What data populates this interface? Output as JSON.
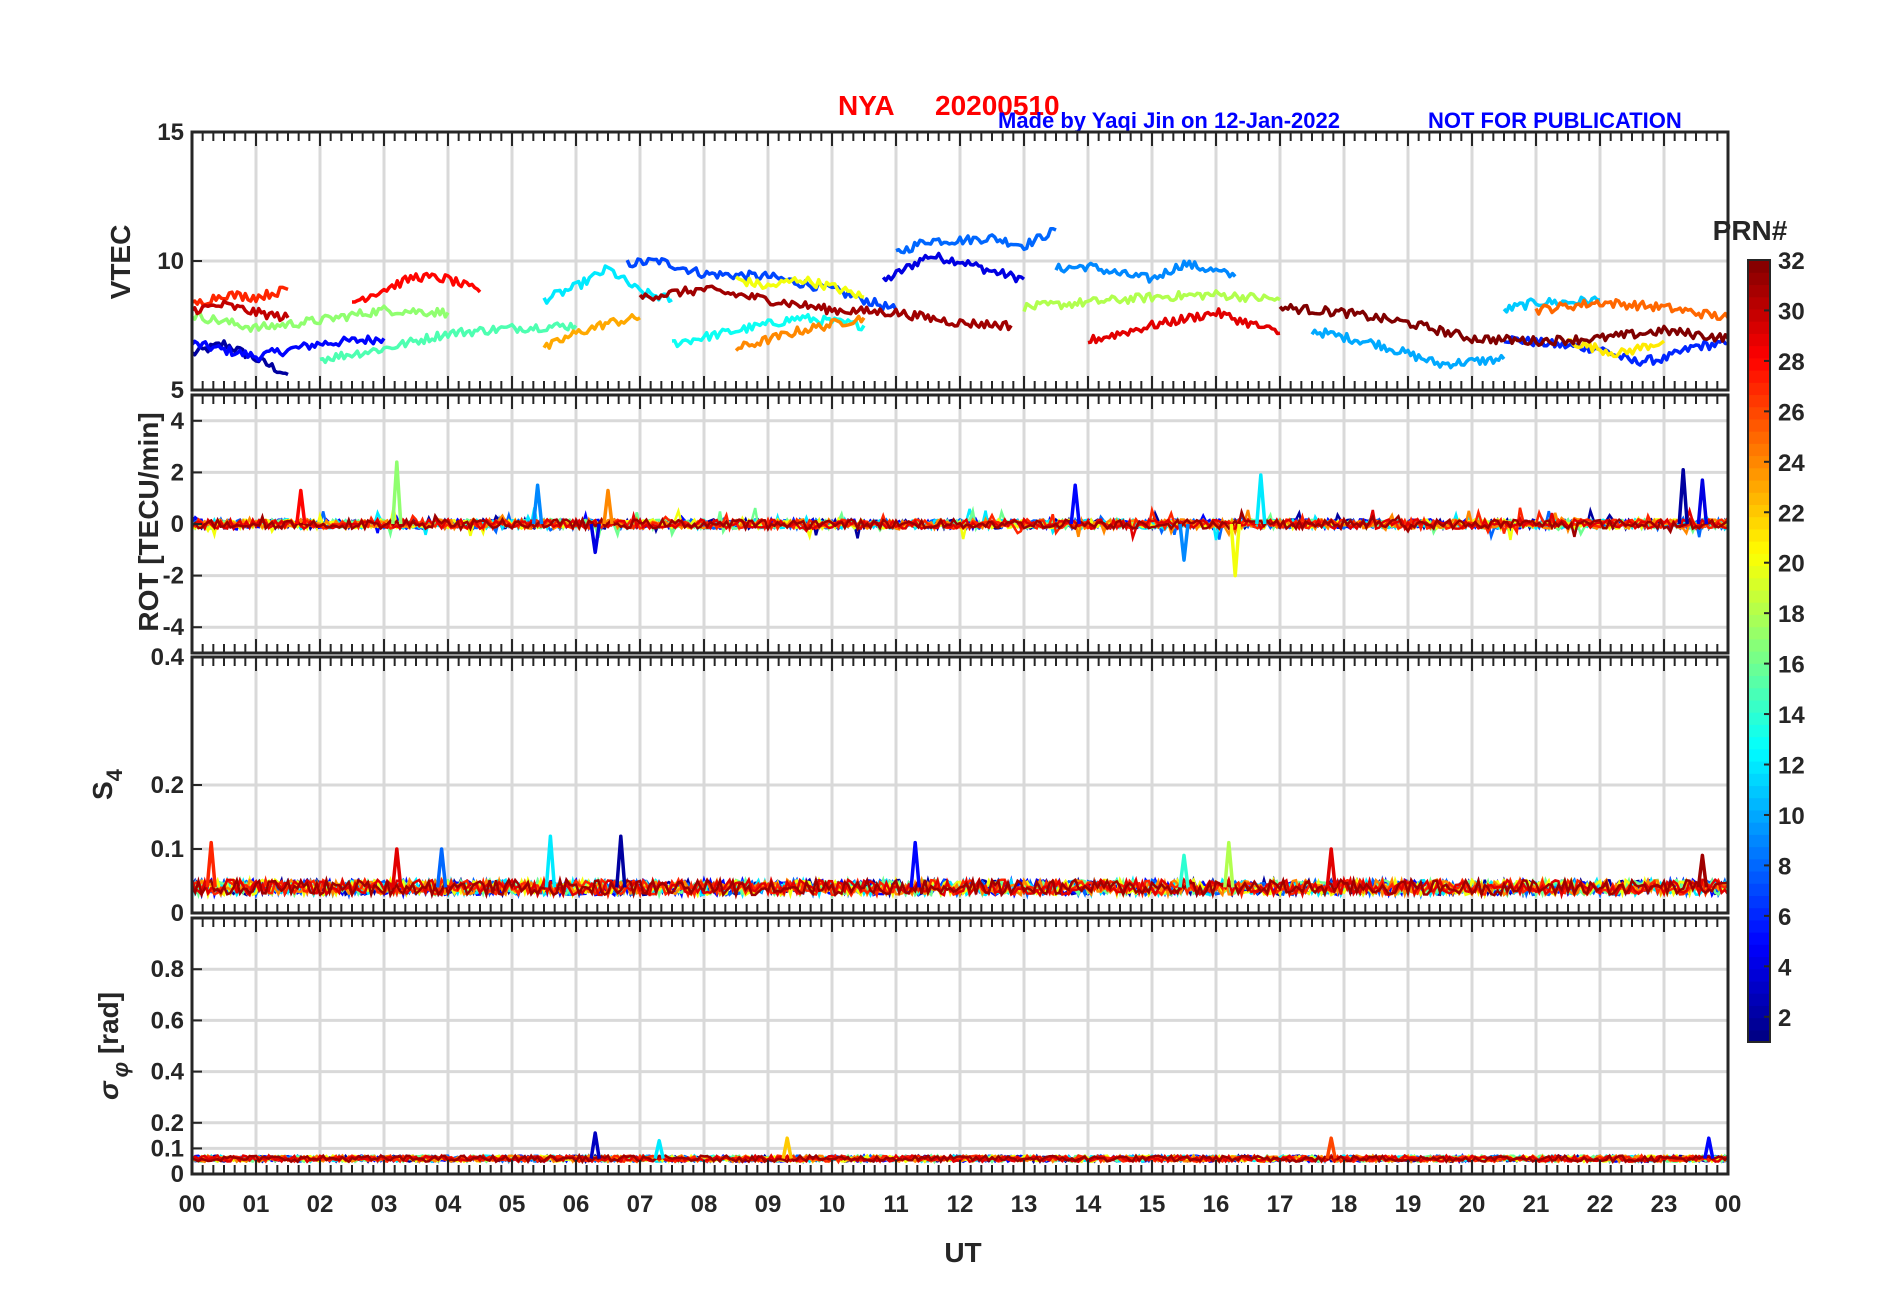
{
  "header": {
    "station": "NYA",
    "date": "20200510",
    "credit": "Made by Yaqi Jin on 12-Jan-2022",
    "notice": "NOT FOR PUBLICATION",
    "title_color": "#ff0000",
    "credit_color": "#0000ff"
  },
  "colorbar": {
    "title": "PRN#",
    "ticks": [
      "2",
      "4",
      "6",
      "8",
      "10",
      "12",
      "14",
      "16",
      "18",
      "20",
      "22",
      "24",
      "26",
      "28",
      "30",
      "32"
    ],
    "min": 1,
    "max": 32,
    "colormap": "jet"
  },
  "chart_data": {
    "type": "line",
    "xlabel": "UT",
    "x_ticks": [
      "00",
      "01",
      "02",
      "03",
      "04",
      "05",
      "06",
      "07",
      "08",
      "09",
      "10",
      "11",
      "12",
      "13",
      "14",
      "15",
      "16",
      "17",
      "18",
      "19",
      "20",
      "21",
      "22",
      "23",
      "00"
    ],
    "xlim_hours": [
      0,
      24
    ],
    "grid": true,
    "panels": [
      {
        "name": "vtec",
        "ylabel": "VTEC",
        "ylim": [
          5,
          15
        ],
        "yticks": [
          "5",
          "10",
          "15"
        ],
        "series": [
          {
            "prn": 2,
            "x": [
              0,
              0.5,
              1,
              1.5
            ],
            "y": [
              6.4,
              6.8,
              6.2,
              5.6
            ]
          },
          {
            "prn": 4,
            "x": [
              10.8,
              11.5,
              12,
              12.5,
              13
            ],
            "y": [
              9.2,
              10.2,
              10.0,
              9.6,
              9.3
            ]
          },
          {
            "prn": 5,
            "x": [
              0,
              1,
              2,
              3
            ],
            "y": [
              6.8,
              6.3,
              6.8,
              7.0
            ]
          },
          {
            "prn": 6,
            "x": [
              20.5,
              21.5,
              22,
              22.5,
              23,
              23.5,
              24
            ],
            "y": [
              7.0,
              6.7,
              6.6,
              6.1,
              6.2,
              6.7,
              6.8
            ]
          },
          {
            "prn": 7,
            "x": [
              6.8,
              7.3,
              8,
              9,
              10,
              11
            ],
            "y": [
              9.9,
              10.0,
              9.5,
              9.4,
              8.9,
              8.1
            ]
          },
          {
            "prn": 8,
            "x": [
              11,
              11.5,
              12,
              12.5,
              13,
              13.5
            ],
            "y": [
              10.3,
              10.8,
              10.8,
              10.9,
              10.6,
              11.2
            ]
          },
          {
            "prn": 9,
            "x": [
              13.5,
              14,
              14.5,
              15,
              15.5,
              16,
              16.3
            ],
            "y": [
              9.7,
              9.8,
              9.5,
              9.3,
              9.9,
              9.6,
              9.4
            ]
          },
          {
            "prn": 10,
            "x": [
              17.5,
              18.5,
              19.5,
              20.5
            ],
            "y": [
              7.3,
              6.8,
              6.0,
              6.2
            ]
          },
          {
            "prn": 11,
            "x": [
              20.5,
              21,
              21.5,
              22
            ],
            "y": [
              8.1,
              8.4,
              8.4,
              8.5
            ]
          },
          {
            "prn": 12,
            "x": [
              5.5,
              6,
              6.5,
              7,
              7.5
            ],
            "y": [
              8.5,
              9.0,
              9.7,
              8.8,
              8.5
            ]
          },
          {
            "prn": 13,
            "x": [
              7.5,
              8.5,
              9.5,
              10.5
            ],
            "y": [
              6.8,
              7.3,
              7.8,
              7.5
            ]
          },
          {
            "prn": 15,
            "x": [
              2,
              3,
              4,
              5,
              6
            ],
            "y": [
              6.2,
              6.6,
              7.2,
              7.4,
              7.5
            ]
          },
          {
            "prn": 17,
            "x": [
              0,
              1,
              2,
              3,
              4
            ],
            "y": [
              7.9,
              7.4,
              7.7,
              8.1,
              8.0
            ]
          },
          {
            "prn": 18,
            "x": [
              13,
              14,
              15,
              16,
              17
            ],
            "y": [
              8.2,
              8.4,
              8.6,
              8.7,
              8.5
            ]
          },
          {
            "prn": 20,
            "x": [
              8.5,
              9,
              9.5,
              10,
              10.5
            ],
            "y": [
              9.3,
              9.0,
              9.3,
              9.0,
              8.6
            ]
          },
          {
            "prn": 21,
            "x": [
              21.5,
              22.3,
              23
            ],
            "y": [
              6.9,
              6.4,
              6.9
            ]
          },
          {
            "prn": 23,
            "x": [
              5.5,
              6,
              6.5,
              7
            ],
            "y": [
              6.6,
              7.2,
              7.6,
              7.8
            ]
          },
          {
            "prn": 24,
            "x": [
              8.5,
              9.5,
              10.5
            ],
            "y": [
              6.6,
              7.3,
              7.8
            ]
          },
          {
            "prn": 25,
            "x": [
              21,
              22,
              23,
              24
            ],
            "y": [
              8.1,
              8.4,
              8.2,
              7.8
            ]
          },
          {
            "prn": 27,
            "x": [
              0,
              0.5,
              1,
              1.5
            ],
            "y": [
              8.3,
              8.7,
              8.6,
              8.9
            ]
          },
          {
            "prn": 28,
            "x": [
              2.5,
              3,
              3.5,
              4,
              4.5
            ],
            "y": [
              8.4,
              8.9,
              9.4,
              9.3,
              8.8
            ]
          },
          {
            "prn": 29,
            "x": [
              14,
              15,
              16,
              17
            ],
            "y": [
              6.9,
              7.5,
              8.0,
              7.2
            ]
          },
          {
            "prn": 30,
            "x": [
              0,
              0.5,
              1,
              1.5
            ],
            "y": [
              8.1,
              8.3,
              8.0,
              7.8
            ]
          },
          {
            "prn": 31,
            "x": [
              7,
              8,
              9,
              10,
              11,
              12,
              12.8
            ],
            "y": [
              8.6,
              8.9,
              8.5,
              8.1,
              8.0,
              7.6,
              7.5
            ]
          },
          {
            "prn": 32,
            "x": [
              17,
              18,
              19,
              20,
              21,
              22,
              23,
              24
            ],
            "y": [
              8.2,
              8.0,
              7.6,
              7.0,
              6.9,
              7.0,
              7.3,
              7.0
            ]
          }
        ]
      },
      {
        "name": "rot",
        "ylabel": "ROT [TECU/min]",
        "ylim": [
          -5,
          5
        ],
        "yticks": [
          "-4",
          "-2",
          "0",
          "2",
          "4"
        ],
        "spikes": [
          {
            "x": 1.7,
            "y": 1.3,
            "prn": 28
          },
          {
            "x": 3.2,
            "y": 2.4,
            "prn": 17
          },
          {
            "x": 5.4,
            "y": 1.5,
            "prn": 9
          },
          {
            "x": 6.3,
            "y": -1.1,
            "prn": 4
          },
          {
            "x": 6.5,
            "y": 1.3,
            "prn": 24
          },
          {
            "x": 13.8,
            "y": 1.5,
            "prn": 5
          },
          {
            "x": 15.5,
            "y": -1.4,
            "prn": 9
          },
          {
            "x": 16.3,
            "y": -2.0,
            "prn": 20
          },
          {
            "x": 16.7,
            "y": 1.9,
            "prn": 12
          },
          {
            "x": 23.3,
            "y": 2.1,
            "prn": 2
          },
          {
            "x": 23.6,
            "y": 1.7,
            "prn": 4
          }
        ]
      },
      {
        "name": "s4",
        "ylabel": "S4",
        "ylim": [
          0,
          0.4
        ],
        "yticks": [
          "0",
          "0.1",
          "0.2",
          "0.4"
        ],
        "spikes": [
          {
            "x": 0.3,
            "y": 0.11,
            "prn": 27
          },
          {
            "x": 3.2,
            "y": 0.1,
            "prn": 29
          },
          {
            "x": 3.9,
            "y": 0.1,
            "prn": 8
          },
          {
            "x": 5.6,
            "y": 0.12,
            "prn": 12
          },
          {
            "x": 6.7,
            "y": 0.12,
            "prn": 2
          },
          {
            "x": 11.3,
            "y": 0.11,
            "prn": 5
          },
          {
            "x": 15.5,
            "y": 0.09,
            "prn": 14
          },
          {
            "x": 16.2,
            "y": 0.11,
            "prn": 18
          },
          {
            "x": 17.8,
            "y": 0.1,
            "prn": 29
          },
          {
            "x": 23.6,
            "y": 0.09,
            "prn": 31
          }
        ]
      },
      {
        "name": "sigma_phi",
        "ylabel": "σ φ [rad]",
        "ylim": [
          0,
          1
        ],
        "yticks": [
          "0",
          "0.1",
          "0.2",
          "0.4",
          "0.6",
          "0.8"
        ],
        "spikes": [
          {
            "x": 6.3,
            "y": 0.16,
            "prn": 3
          },
          {
            "x": 7.3,
            "y": 0.13,
            "prn": 12
          },
          {
            "x": 9.3,
            "y": 0.14,
            "prn": 22
          },
          {
            "x": 17.8,
            "y": 0.14,
            "prn": 26
          },
          {
            "x": 23.7,
            "y": 0.14,
            "prn": 5
          }
        ]
      }
    ]
  }
}
